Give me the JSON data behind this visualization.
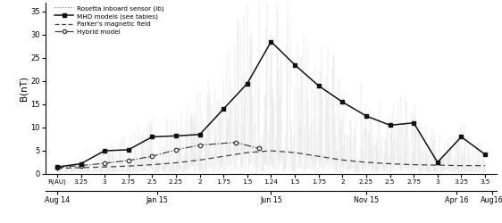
{
  "ylabel": "B(nT)",
  "ylim": [
    0,
    37
  ],
  "yticks": [
    0,
    5,
    10,
    15,
    20,
    25,
    30,
    35
  ],
  "background_color": "#ffffff",
  "x_top_labels": [
    "R(AU)",
    "3.25",
    "3",
    "2.75",
    "2.5",
    "2.25",
    "2",
    "1.75",
    "1.5",
    "1.24",
    "1.5",
    "1.75",
    "2",
    "2.25",
    "2.5",
    "2.75",
    "3",
    "3.25",
    "3.5"
  ],
  "x_top_pos": [
    0,
    1,
    2,
    3,
    4,
    5,
    6,
    7,
    8,
    9,
    10,
    11,
    12,
    13,
    14,
    15,
    16,
    17,
    18
  ],
  "date_labels": [
    "Aug 14",
    "Jan 15",
    "Jun 15",
    "Nov 15",
    "Apr 16",
    "Aug16"
  ],
  "date_positions": [
    0.0,
    4.2,
    9.0,
    13.0,
    16.8,
    18.3
  ],
  "mhd_x": [
    0,
    1,
    2,
    3,
    4,
    5,
    6,
    7,
    8,
    9,
    10,
    11,
    12,
    13,
    14,
    15,
    16,
    17,
    18
  ],
  "mhd_y": [
    1.5,
    2.2,
    5.0,
    5.2,
    8.0,
    8.2,
    8.5,
    14.0,
    19.5,
    28.5,
    23.5,
    19.0,
    15.5,
    12.5,
    10.5,
    11.0,
    2.5,
    8.0,
    4.2
  ],
  "parker_x": [
    0,
    1,
    2,
    3,
    4,
    5,
    6,
    7,
    8,
    9,
    10,
    11,
    12,
    13,
    14,
    15,
    16,
    17,
    18
  ],
  "parker_y": [
    1.2,
    1.35,
    1.5,
    1.7,
    2.0,
    2.4,
    3.0,
    3.8,
    4.6,
    5.0,
    4.6,
    3.8,
    3.0,
    2.5,
    2.2,
    2.0,
    1.9,
    1.8,
    1.8
  ],
  "hybrid_x": [
    0,
    1,
    2,
    3,
    4,
    5,
    6,
    7.5,
    8.5
  ],
  "hybrid_y": [
    1.4,
    1.8,
    2.3,
    2.9,
    3.8,
    5.2,
    6.2,
    6.8,
    5.5
  ],
  "mhd_env_x": [
    0,
    0.5,
    1,
    1.5,
    2,
    2.5,
    3,
    3.5,
    4,
    4.5,
    5,
    5.5,
    6,
    6.5,
    7,
    7.5,
    8,
    8.25,
    8.5,
    9,
    9.5,
    10,
    10.5,
    11,
    11.5,
    12,
    12.5,
    13,
    13.5,
    14,
    14.5,
    15,
    15.5,
    16,
    16.5,
    17,
    17.5,
    18
  ],
  "mhd_env_y": [
    1.5,
    1.8,
    2.2,
    3.0,
    5.0,
    5.2,
    6.0,
    7.0,
    8.0,
    8.2,
    8.5,
    10.0,
    12.0,
    14.0,
    16.0,
    19.5,
    28.5,
    32.0,
    30.0,
    28.5,
    26.0,
    23.5,
    22.0,
    20.0,
    18.0,
    15.5,
    14.0,
    12.5,
    11.5,
    10.5,
    11.0,
    10.0,
    7.0,
    6.0,
    5.0,
    8.0,
    6.0,
    4.5
  ],
  "line_color": "#333333",
  "dot_color": "#666666"
}
